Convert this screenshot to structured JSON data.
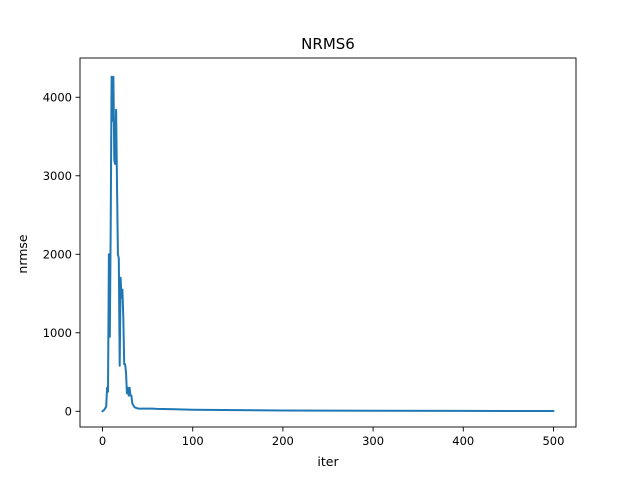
{
  "chart_data": {
    "type": "line",
    "title": "NRMS6",
    "xlabel": "iter",
    "ylabel": "nrmse",
    "xlim": [
      -25,
      525
    ],
    "ylim": [
      -200,
      4500
    ],
    "xticks": [
      0,
      100,
      200,
      300,
      400,
      500
    ],
    "yticks": [
      0,
      1000,
      2000,
      3000,
      4000
    ],
    "grid": false,
    "legend": "none",
    "line_color": "#1f77b4",
    "series": [
      {
        "x": [
          0,
          2,
          4,
          5,
          6,
          7,
          8,
          9,
          10,
          11,
          12,
          13,
          14,
          15,
          16,
          17,
          18,
          19,
          20,
          21,
          22,
          23,
          24,
          25,
          26,
          27,
          28,
          29,
          30,
          31,
          32,
          33,
          34,
          35,
          36,
          37,
          38,
          40,
          42,
          45,
          50,
          55,
          60,
          80,
          100,
          150,
          200,
          300,
          400,
          500
        ],
        "y": [
          0,
          20,
          60,
          300,
          250,
          2000,
          950,
          2350,
          4260,
          3700,
          4260,
          3200,
          3150,
          3840,
          2900,
          2000,
          1950,
          580,
          1700,
          1450,
          1550,
          1200,
          600,
          600,
          500,
          230,
          300,
          200,
          300,
          200,
          200,
          100,
          80,
          60,
          50,
          45,
          40,
          35,
          35,
          35,
          35,
          35,
          30,
          25,
          20,
          15,
          10,
          7,
          5,
          4
        ]
      }
    ]
  }
}
